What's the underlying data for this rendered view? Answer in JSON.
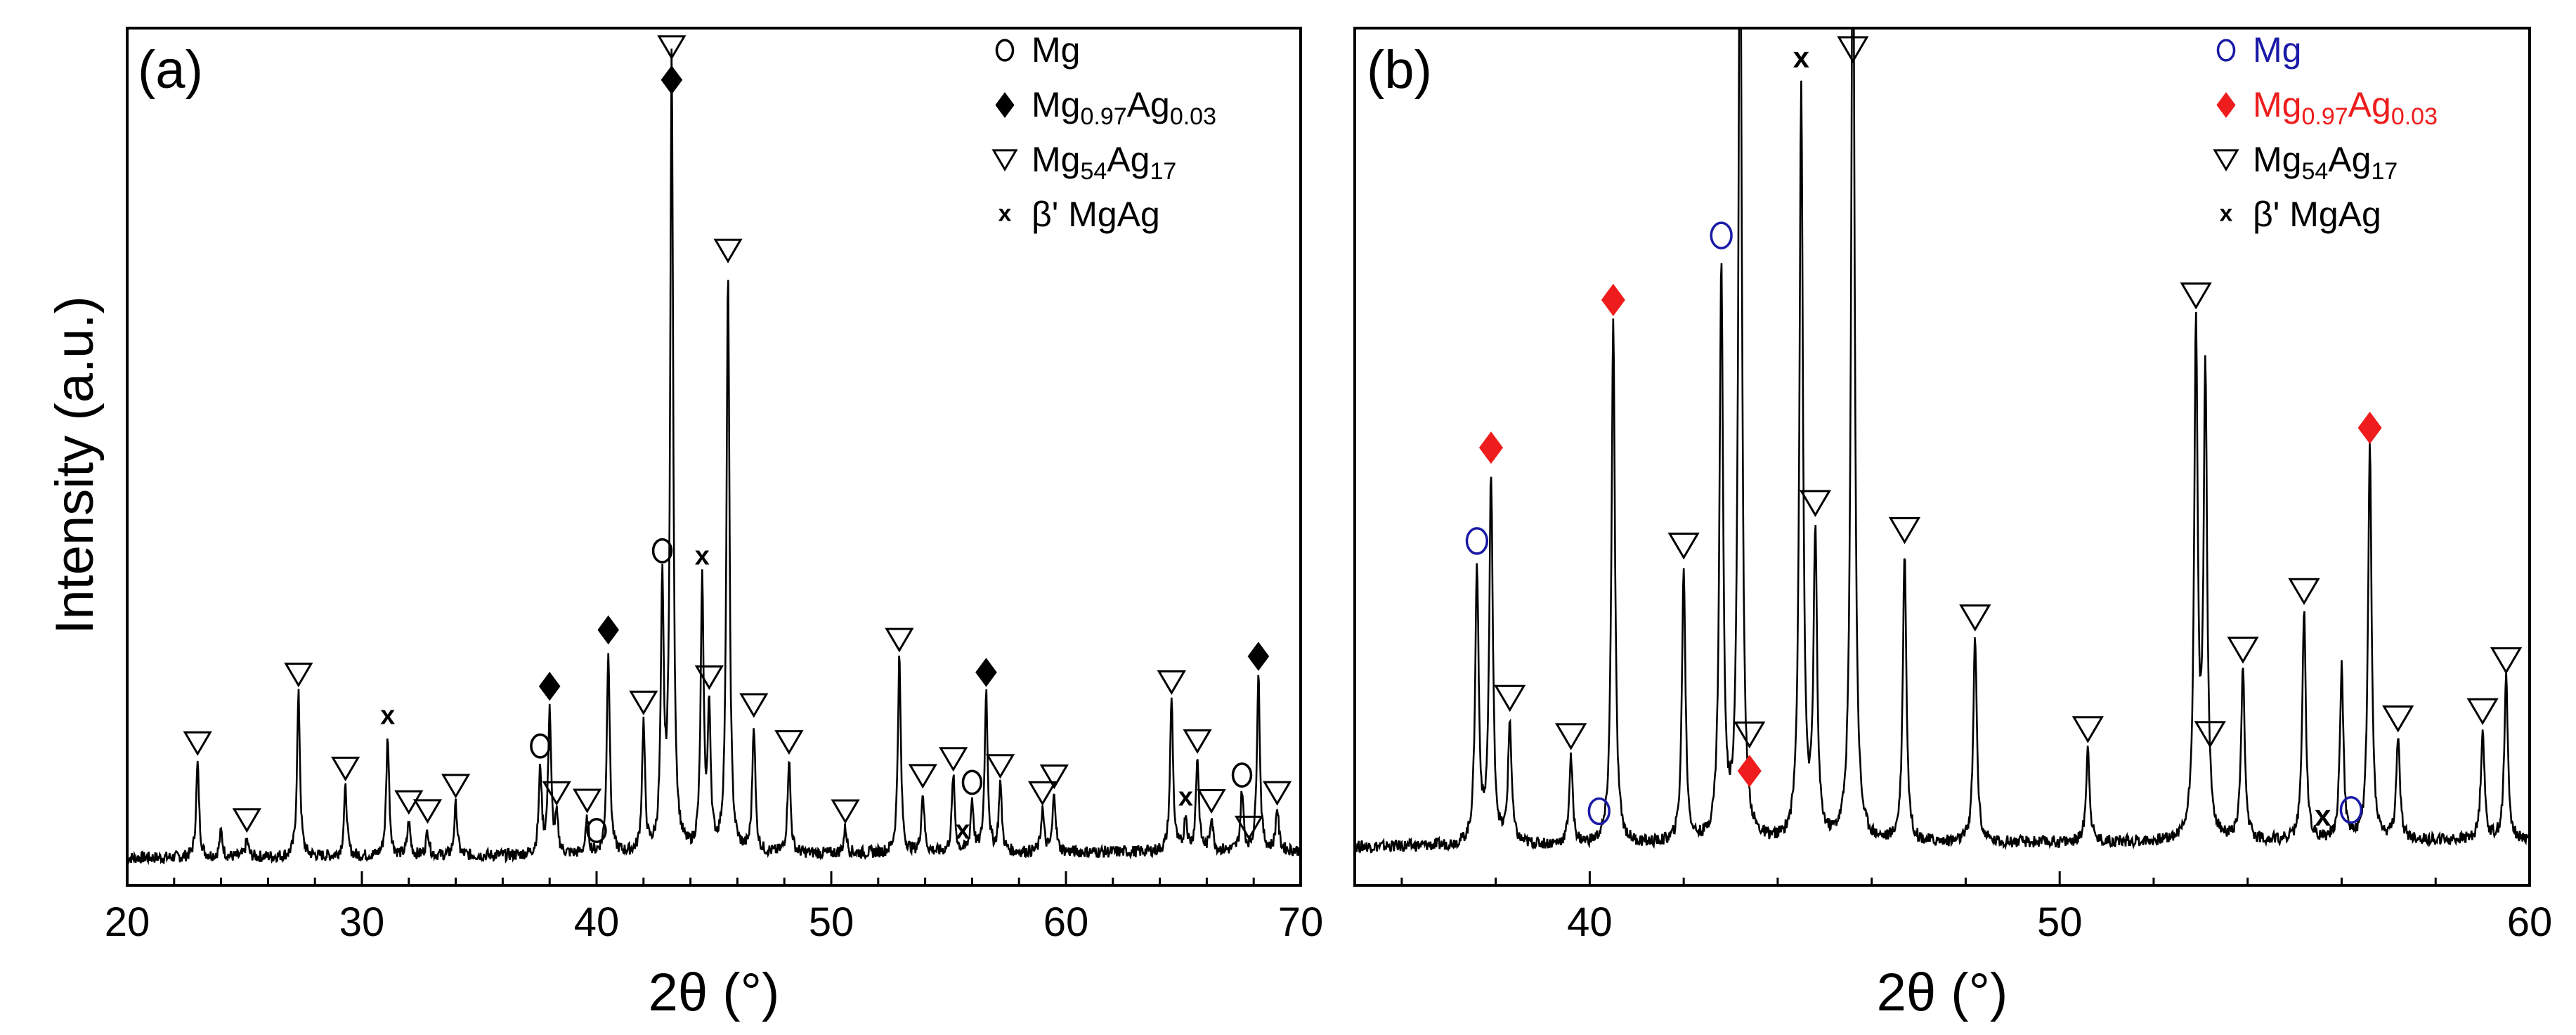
{
  "figure": {
    "ylabel": "Intensity (a.u.)",
    "xlabel": "2θ (°)"
  },
  "chart_data": [
    {
      "type": "line",
      "panel_label": "(a)",
      "xlabel": "2θ (°)",
      "ylabel": "Intensity (a.u.)",
      "xlim": [
        20,
        70
      ],
      "ylim": [
        0,
        100
      ],
      "xticks": [
        20,
        30,
        40,
        50,
        60,
        70
      ],
      "grid": false,
      "legend_position": "top-right",
      "legend": [
        {
          "marker": "o",
          "label": "Mg",
          "sub": []
        },
        {
          "marker": "◆",
          "label": "Mg0.97Ag0.03",
          "sub": [
            "Mg",
            "0.97",
            "Ag",
            "0.03"
          ]
        },
        {
          "marker": "▽",
          "label": "Mg54Ag17",
          "sub": [
            "Mg",
            "54",
            "Ag",
            "17"
          ]
        },
        {
          "marker": "x",
          "label": "β' MgAg",
          "sub": []
        }
      ],
      "colors": {
        "line": "#000000",
        "Mg": "#000000",
        "MgAg003": "#000000",
        "Mg54Ag17": "#000000",
        "beta": "#000000"
      },
      "baseline": 3.2,
      "peaks": [
        [
          23.0,
          11
        ],
        [
          24.0,
          3
        ],
        [
          25.1,
          2
        ],
        [
          27.3,
          19
        ],
        [
          29.3,
          8
        ],
        [
          31.1,
          14
        ],
        [
          32.0,
          4
        ],
        [
          32.8,
          3
        ],
        [
          34.0,
          6
        ],
        [
          37.6,
          10
        ],
        [
          38.0,
          17
        ],
        [
          38.3,
          4
        ],
        [
          39.6,
          4
        ],
        [
          40.5,
          24
        ],
        [
          42.0,
          15
        ],
        [
          42.8,
          30
        ],
        [
          43.2,
          93
        ],
        [
          44.5,
          31
        ],
        [
          44.8,
          16
        ],
        [
          45.6,
          68
        ],
        [
          46.7,
          15
        ],
        [
          48.2,
          11
        ],
        [
          50.6,
          3
        ],
        [
          52.9,
          23
        ],
        [
          53.9,
          7
        ],
        [
          55.2,
          9
        ],
        [
          56.0,
          6
        ],
        [
          56.6,
          19
        ],
        [
          57.2,
          8
        ],
        [
          59.0,
          5
        ],
        [
          59.5,
          7
        ],
        [
          64.5,
          18
        ],
        [
          65.1,
          4
        ],
        [
          65.6,
          11
        ],
        [
          66.2,
          4
        ],
        [
          67.5,
          7
        ],
        [
          68.2,
          21
        ],
        [
          69.0,
          5
        ]
      ],
      "markers": [
        {
          "type": "tri",
          "x": 23.0
        },
        {
          "type": "tri",
          "x": 25.1
        },
        {
          "type": "tri",
          "x": 27.3
        },
        {
          "type": "tri",
          "x": 29.3
        },
        {
          "type": "x",
          "x": 31.1
        },
        {
          "type": "tri",
          "x": 32.0
        },
        {
          "type": "tri",
          "x": 32.8
        },
        {
          "type": "tri",
          "x": 34.0
        },
        {
          "type": "o",
          "x": 37.6
        },
        {
          "type": "diamond",
          "x": 38.0
        },
        {
          "type": "tri",
          "x": 38.3
        },
        {
          "type": "tri",
          "x": 39.6
        },
        {
          "type": "o",
          "x": 40.0
        },
        {
          "type": "diamond",
          "x": 40.5
        },
        {
          "type": "tri",
          "x": 42.0
        },
        {
          "type": "o",
          "x": 42.8
        },
        {
          "type": "tri",
          "x": 43.2
        },
        {
          "type": "diamond",
          "x": 43.2
        },
        {
          "type": "x",
          "x": 44.5
        },
        {
          "type": "tri",
          "x": 44.8
        },
        {
          "type": "tri",
          "x": 45.6
        },
        {
          "type": "tri",
          "x": 46.7
        },
        {
          "type": "tri",
          "x": 48.2
        },
        {
          "type": "tri",
          "x": 50.6
        },
        {
          "type": "tri",
          "x": 52.9
        },
        {
          "type": "tri",
          "x": 53.9
        },
        {
          "type": "tri",
          "x": 55.2
        },
        {
          "type": "x",
          "x": 55.6
        },
        {
          "type": "o",
          "x": 56.0
        },
        {
          "type": "diamond",
          "x": 56.6
        },
        {
          "type": "tri",
          "x": 57.2
        },
        {
          "type": "tri",
          "x": 59.0
        },
        {
          "type": "tri",
          "x": 59.5
        },
        {
          "type": "tri",
          "x": 64.5
        },
        {
          "type": "x",
          "x": 65.1
        },
        {
          "type": "tri",
          "x": 65.6
        },
        {
          "type": "tri",
          "x": 66.2
        },
        {
          "type": "o",
          "x": 67.5
        },
        {
          "type": "tri",
          "x": 67.8
        },
        {
          "type": "diamond",
          "x": 68.2
        },
        {
          "type": "tri",
          "x": 69.0
        }
      ]
    },
    {
      "type": "line",
      "panel_label": "(b)",
      "xlabel": "2θ (°)",
      "xlim": [
        35,
        60
      ],
      "ylim": [
        0,
        100
      ],
      "xticks": [
        40,
        50,
        60
      ],
      "grid": false,
      "legend_position": "top-right",
      "legend": [
        {
          "marker": "o",
          "label": "Mg",
          "sub": []
        },
        {
          "marker": "◆",
          "label": "Mg0.97Ag0.03",
          "sub": [
            "Mg",
            "0.97",
            "Ag",
            "0.03"
          ]
        },
        {
          "marker": "▽",
          "label": "Mg54Ag17",
          "sub": [
            "Mg",
            "54",
            "Ag",
            "17"
          ]
        },
        {
          "marker": "x",
          "label": "β' MgAg",
          "sub": []
        }
      ],
      "colors": {
        "line": "#000000",
        "Mg": "#1a1aa6",
        "MgAg003": "#ee1c1c",
        "Mg54Ag17": "#000000",
        "beta": "#000000"
      },
      "baseline": 4.5,
      "peaks": [
        [
          37.6,
          32
        ],
        [
          37.9,
          43
        ],
        [
          38.3,
          14
        ],
        [
          39.6,
          10
        ],
        [
          40.5,
          61
        ],
        [
          42.0,
          32
        ],
        [
          42.8,
          67
        ],
        [
          43.2,
          115
        ],
        [
          44.5,
          88
        ],
        [
          44.8,
          35
        ],
        [
          45.6,
          115
        ],
        [
          46.7,
          34
        ],
        [
          48.2,
          24
        ],
        [
          50.6,
          11
        ],
        [
          52.9,
          59
        ],
        [
          53.1,
          54
        ],
        [
          53.9,
          20
        ],
        [
          55.2,
          27
        ],
        [
          56.0,
          20
        ],
        [
          56.6,
          46
        ],
        [
          57.2,
          12
        ],
        [
          59.0,
          13
        ],
        [
          59.5,
          19
        ]
      ],
      "markers": [
        {
          "type": "o",
          "x": 37.6
        },
        {
          "type": "diamond",
          "x": 37.9
        },
        {
          "type": "tri",
          "x": 38.3
        },
        {
          "type": "tri",
          "x": 39.6
        },
        {
          "type": "o",
          "x": 40.2
        },
        {
          "type": "diamond",
          "x": 40.5
        },
        {
          "type": "tri",
          "x": 42.0
        },
        {
          "type": "o",
          "x": 42.8
        },
        {
          "type": "diamond",
          "x": 43.4
        },
        {
          "type": "tri",
          "x": 43.4
        },
        {
          "type": "x",
          "x": 44.5
        },
        {
          "type": "tri",
          "x": 44.8
        },
        {
          "type": "tri",
          "x": 45.6
        },
        {
          "type": "tri",
          "x": 46.7
        },
        {
          "type": "tri",
          "x": 48.2
        },
        {
          "type": "tri",
          "x": 50.6
        },
        {
          "type": "tri",
          "x": 52.9
        },
        {
          "type": "tri",
          "x": 53.2
        },
        {
          "type": "tri",
          "x": 53.9
        },
        {
          "type": "tri",
          "x": 55.2
        },
        {
          "type": "x",
          "x": 55.6
        },
        {
          "type": "o",
          "x": 56.2
        },
        {
          "type": "diamond",
          "x": 56.6
        },
        {
          "type": "tri",
          "x": 57.2
        },
        {
          "type": "tri",
          "x": 59.0
        },
        {
          "type": "tri",
          "x": 59.5
        }
      ]
    }
  ]
}
